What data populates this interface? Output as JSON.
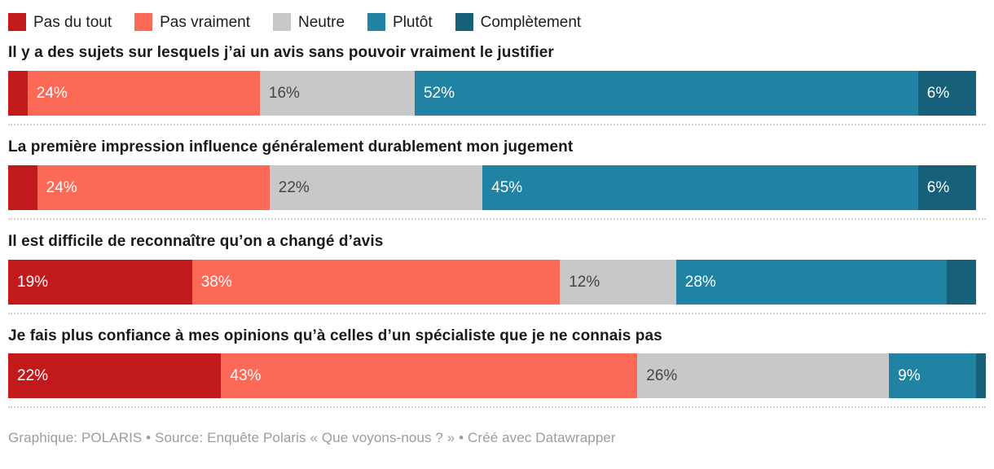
{
  "legend": {
    "items": [
      {
        "label": "Pas du tout",
        "color": "#c2191d"
      },
      {
        "label": "Pas vraiment",
        "color": "#fc6957"
      },
      {
        "label": "Neutre",
        "color": "#c8c8c8"
      },
      {
        "label": "Plutôt",
        "color": "#2183a4"
      },
      {
        "label": "Complètement",
        "color": "#16607a"
      }
    ]
  },
  "chart_data": {
    "type": "bar",
    "orientation": "horizontal-stacked",
    "unit": "%",
    "axis_max": 101,
    "legend_position": "top",
    "categories": [
      "Pas du tout",
      "Pas vraiment",
      "Neutre",
      "Plutôt",
      "Complètement"
    ],
    "palette": [
      "#c2191d",
      "#fc6957",
      "#c8c8c8",
      "#2183a4",
      "#16607a"
    ],
    "label_color_on_dark": "#ffffff",
    "label_color_on_light": "#444444",
    "questions": [
      {
        "title": "Il y a des sujets sur lesquels j’ai un avis sans pouvoir vraiment le justifier",
        "values": [
          2,
          24,
          16,
          52,
          6
        ],
        "labels": [
          "",
          "24%",
          "16%",
          "52%",
          "6%"
        ]
      },
      {
        "title": "La première impression influence généralement durablement mon jugement",
        "values": [
          3,
          24,
          22,
          45,
          6
        ],
        "labels": [
          "",
          "24%",
          "22%",
          "45%",
          "6%"
        ]
      },
      {
        "title": "Il est difficile de reconnaître qu’on a changé d’avis",
        "values": [
          19,
          38,
          12,
          28,
          3
        ],
        "labels": [
          "19%",
          "38%",
          "12%",
          "28%",
          ""
        ]
      },
      {
        "title": "Je fais plus confiance à mes opinions qu’à celles d’un spécialiste que je ne connais pas",
        "values": [
          22,
          43,
          26,
          9,
          1
        ],
        "labels": [
          "22%",
          "43%",
          "26%",
          "9%",
          ""
        ]
      }
    ]
  },
  "footer": {
    "text": "Graphique: POLARIS • Source: Enquête Polaris « Que voyons-nous ? » • Créé avec Datawrapper"
  }
}
